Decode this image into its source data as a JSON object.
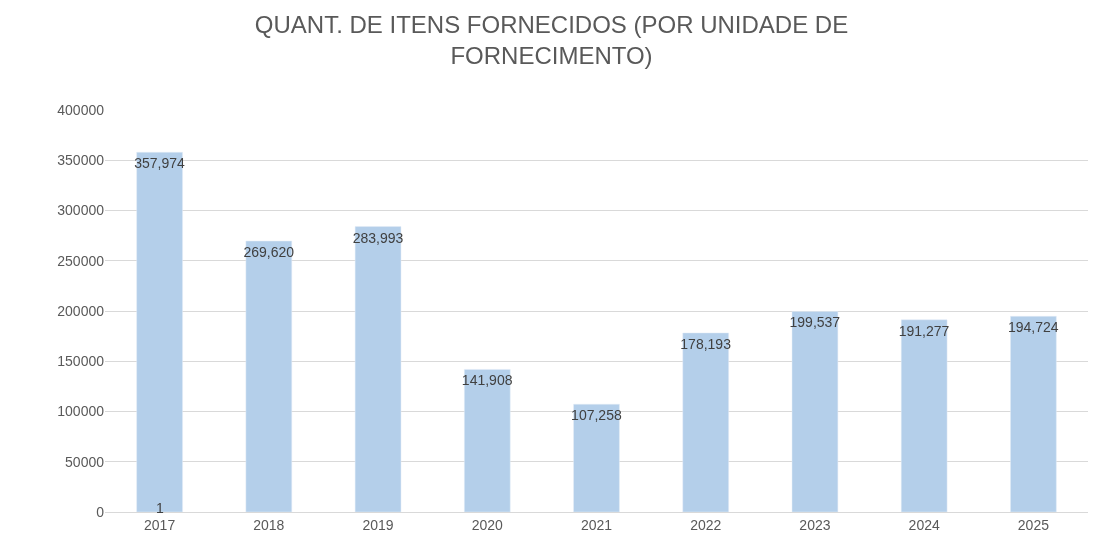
{
  "chart_data": {
    "type": "bar",
    "title": "QUANT. DE ITENS FORNECIDOS (POR UNIDADE DE FORNECIMENTO)",
    "categories": [
      "2017",
      "2018",
      "2019",
      "2020",
      "2021",
      "2022",
      "2023",
      "2024",
      "2025"
    ],
    "values": [
      357974,
      269620,
      283993,
      141908,
      107258,
      178193,
      199537,
      191277,
      194724
    ],
    "color": "#b4cfea",
    "ylim": [
      0,
      400000
    ],
    "yticks": [
      0,
      50000,
      100000,
      150000,
      200000,
      250000,
      300000,
      350000,
      400000
    ],
    "value_labels": [
      "357,974",
      "269,620",
      "283,993",
      "141,908",
      "107,258",
      "178,193",
      "199,537",
      "191,277",
      "194,724"
    ],
    "grid": "y",
    "annotations": [
      {
        "text": "1",
        "x": "2017",
        "y": 0
      }
    ]
  }
}
